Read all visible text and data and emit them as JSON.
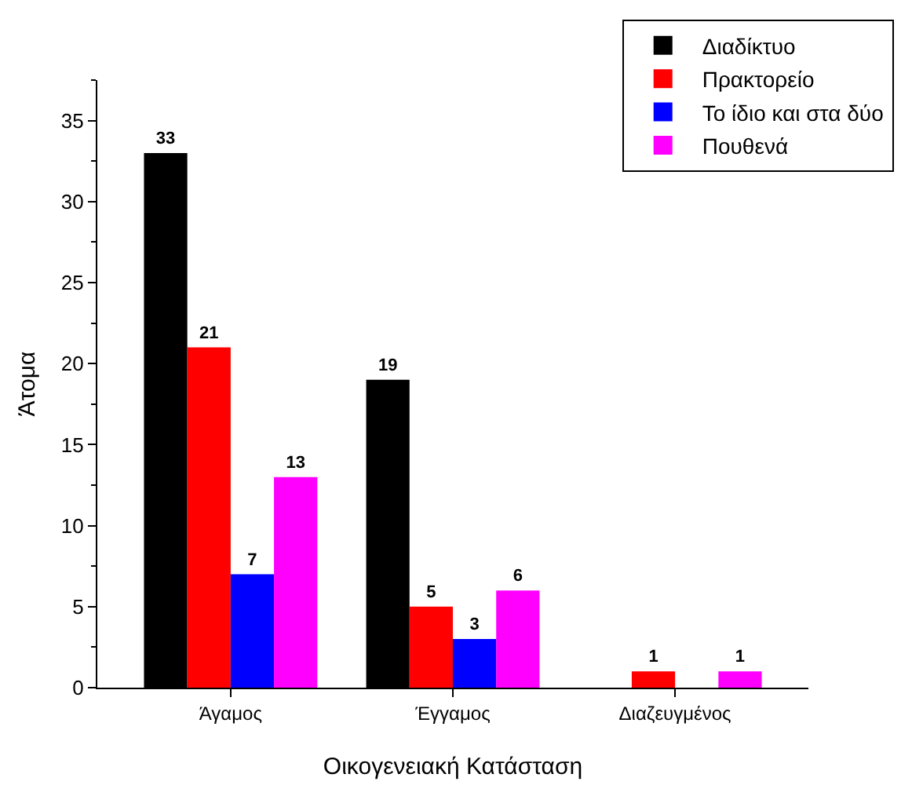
{
  "chart_data": {
    "type": "bar",
    "xlabel": "Οικογενειακή Κατάσταση",
    "ylabel": "Άτομα",
    "categories": [
      "Άγαμος",
      "Έγγαμος",
      "Διαζευγμένος"
    ],
    "series": [
      {
        "name": "Διαδίκτυο",
        "color": "#000000",
        "values": [
          33,
          19,
          0
        ],
        "value_labels": [
          "33",
          "19",
          null
        ]
      },
      {
        "name": "Πρακτορείο",
        "color": "#ff0000",
        "values": [
          21,
          5,
          1
        ],
        "value_labels": [
          "21",
          "5",
          "1"
        ]
      },
      {
        "name": "Το ίδιο και στα δύο",
        "color": "#0000ff",
        "values": [
          7,
          3,
          0
        ],
        "value_labels": [
          "7",
          "3",
          null
        ]
      },
      {
        "name": "Πουθενά",
        "color": "#ff00ff",
        "values": [
          13,
          6,
          1
        ],
        "value_labels": [
          "13",
          "6",
          "1"
        ]
      }
    ],
    "ylim": [
      0,
      37.5
    ],
    "yticks": [
      0,
      5,
      10,
      15,
      20,
      25,
      30,
      35
    ],
    "grid": false,
    "legend": "top right"
  }
}
